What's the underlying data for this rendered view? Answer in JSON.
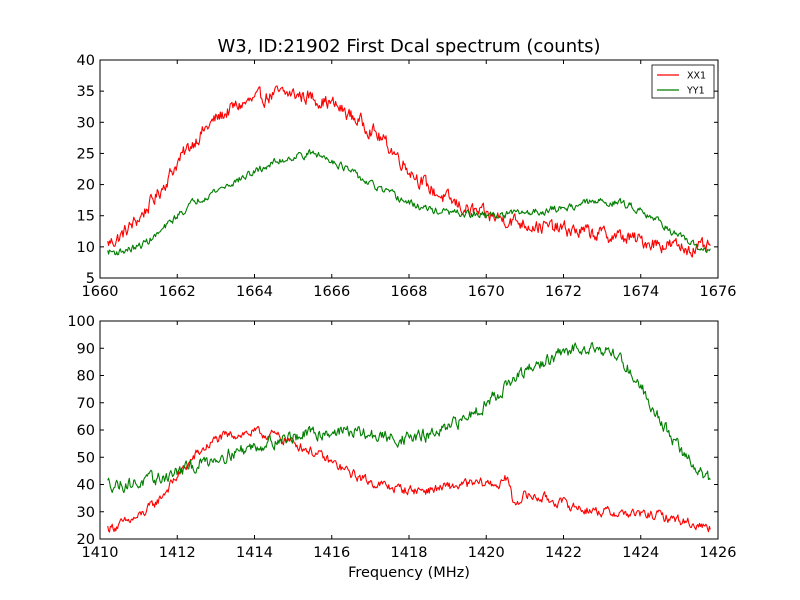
{
  "chart_data": [
    {
      "type": "line",
      "title": "W3, ID:21902 First Dcal spectrum (counts)",
      "xlabel": "",
      "ylabel": "",
      "xlim": [
        1660,
        1676
      ],
      "ylim": [
        5,
        40
      ],
      "x_ticks": [
        "1660",
        "1662",
        "1664",
        "1666",
        "1668",
        "1670",
        "1672",
        "1674",
        "1676"
      ],
      "y_ticks": [
        "5",
        "10",
        "15",
        "20",
        "25",
        "30",
        "35",
        "40"
      ],
      "grid": false,
      "legend": "top-right",
      "series": [
        {
          "name": "XX1",
          "color": "#ff0000",
          "x": [
            1660.2,
            1660.5,
            1661.0,
            1661.5,
            1662.0,
            1662.5,
            1663.0,
            1663.5,
            1664.0,
            1664.5,
            1665.0,
            1665.5,
            1666.0,
            1666.5,
            1667.0,
            1667.5,
            1668.0,
            1668.5,
            1669.0,
            1669.5,
            1670.0,
            1670.5,
            1671.0,
            1671.5,
            1672.0,
            1672.5,
            1673.0,
            1673.5,
            1674.0,
            1674.5,
            1675.0,
            1675.5,
            1675.8
          ],
          "values": [
            10.5,
            11.5,
            14.5,
            18.5,
            23.5,
            27.5,
            30.5,
            32.5,
            33.5,
            34.5,
            34.5,
            34.0,
            33.0,
            31.0,
            29.0,
            26.0,
            22.5,
            19.5,
            17.5,
            16.0,
            15.0,
            14.5,
            13.8,
            13.2,
            12.8,
            12.4,
            12.0,
            11.6,
            11.0,
            10.5,
            10.0,
            9.7,
            9.8
          ],
          "noise": 1.0
        },
        {
          "name": "YY1",
          "color": "#007f00",
          "x": [
            1660.2,
            1660.5,
            1661.0,
            1661.5,
            1662.0,
            1662.5,
            1663.0,
            1663.5,
            1664.0,
            1664.5,
            1665.0,
            1665.5,
            1666.0,
            1666.5,
            1667.0,
            1667.5,
            1668.0,
            1668.5,
            1669.0,
            1669.5,
            1670.0,
            1670.5,
            1671.0,
            1671.5,
            1672.0,
            1672.5,
            1673.0,
            1673.5,
            1674.0,
            1674.5,
            1675.0,
            1675.5,
            1675.8
          ],
          "values": [
            9.2,
            9.2,
            10.0,
            12.0,
            15.0,
            17.5,
            19.0,
            20.5,
            22.0,
            23.5,
            24.5,
            25.0,
            24.0,
            22.0,
            20.0,
            18.5,
            17.0,
            16.0,
            15.5,
            15.2,
            15.0,
            15.2,
            15.5,
            15.8,
            16.2,
            17.0,
            17.3,
            17.0,
            16.0,
            14.0,
            11.5,
            9.8,
            9.5
          ],
          "noise": 0.5
        }
      ]
    },
    {
      "type": "line",
      "title": "",
      "xlabel": "Frequency (MHz)",
      "ylabel": "",
      "xlim": [
        1410,
        1426
      ],
      "ylim": [
        20,
        100
      ],
      "x_ticks": [
        "1410",
        "1412",
        "1414",
        "1416",
        "1418",
        "1420",
        "1422",
        "1424",
        "1426"
      ],
      "y_ticks": [
        "20",
        "30",
        "40",
        "50",
        "60",
        "70",
        "80",
        "90",
        "100"
      ],
      "grid": false,
      "series": [
        {
          "color": "#ff0000",
          "x": [
            1410.2,
            1410.5,
            1411.0,
            1411.5,
            1412.0,
            1412.5,
            1413.0,
            1413.5,
            1414.0,
            1414.5,
            1415.0,
            1415.5,
            1416.0,
            1416.5,
            1417.0,
            1417.5,
            1418.0,
            1418.5,
            1419.0,
            1419.5,
            1420.0,
            1420.4,
            1420.55,
            1420.7,
            1421.0,
            1421.5,
            1422.0,
            1422.5,
            1423.0,
            1423.5,
            1424.0,
            1424.5,
            1425.0,
            1425.5,
            1425.8
          ],
          "values": [
            24.0,
            25.0,
            28.0,
            34.0,
            43.0,
            51.0,
            56.5,
            58.5,
            59.0,
            58.0,
            55.5,
            52.0,
            48.0,
            44.0,
            41.0,
            39.0,
            38.0,
            38.0,
            39.0,
            40.0,
            40.5,
            40.0,
            43.0,
            33.0,
            36.0,
            35.0,
            33.0,
            31.0,
            30.0,
            29.5,
            29.0,
            28.5,
            27.0,
            25.0,
            24.5
          ],
          "noise": 1.5
        },
        {
          "color": "#007f00",
          "x": [
            1410.2,
            1410.5,
            1411.0,
            1411.5,
            1412.0,
            1412.5,
            1413.0,
            1413.5,
            1414.0,
            1414.5,
            1415.0,
            1415.5,
            1416.0,
            1416.5,
            1417.0,
            1417.5,
            1418.0,
            1418.5,
            1419.0,
            1419.5,
            1420.0,
            1420.5,
            1421.0,
            1421.5,
            1422.0,
            1422.5,
            1423.0,
            1423.5,
            1424.0,
            1424.5,
            1425.0,
            1425.5,
            1425.8
          ],
          "values": [
            40.5,
            40.0,
            40.5,
            42.0,
            44.5,
            47.0,
            50.0,
            52.0,
            54.0,
            56.0,
            57.5,
            58.5,
            59.5,
            59.5,
            58.0,
            57.0,
            57.0,
            58.0,
            60.0,
            65.0,
            70.0,
            76.0,
            81.0,
            85.0,
            88.0,
            91.0,
            90.0,
            86.0,
            76.0,
            64.0,
            53.0,
            45.0,
            42.0
          ],
          "noise": 2.0
        }
      ]
    }
  ]
}
